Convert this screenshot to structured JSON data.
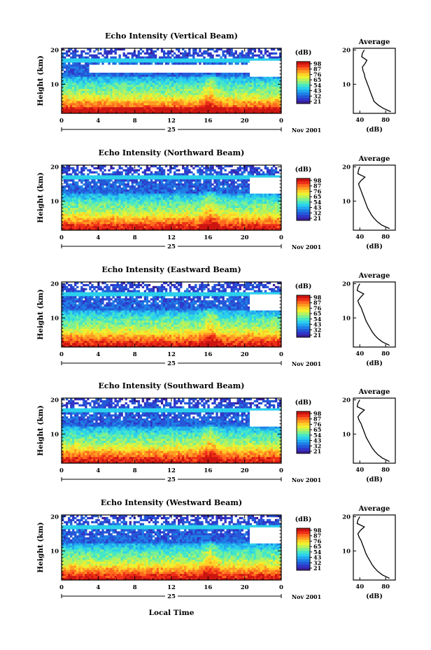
{
  "xlabel": "Local Time",
  "chart_data": [
    {
      "type": "heatmap",
      "title": "Echo Intensity (Vertical Beam)",
      "ylabel": "Height (km)",
      "x_ticks": [
        "0",
        "4",
        "8",
        "12",
        "16",
        "20",
        "0"
      ],
      "day_label": "25",
      "date_label": "Nov 2001",
      "y_ticks": [
        "20",
        "10"
      ],
      "colorbar_unit": "(dB)",
      "colorbar_ticks": [
        "98",
        "87",
        "76",
        "65",
        "54",
        "43",
        "32",
        "21"
      ],
      "ylim": [
        1.5,
        20.5
      ],
      "xlim": [
        0,
        24
      ],
      "average": {
        "title": "Average",
        "xlabel": "(dB)",
        "x_ticks": [
          "40",
          "80"
        ],
        "y_ticks": [
          "20",
          "10"
        ],
        "profile": [
          [
            20,
            47
          ],
          [
            19,
            44
          ],
          [
            18,
            43
          ],
          [
            17,
            51
          ],
          [
            16,
            48
          ],
          [
            15,
            44
          ],
          [
            14,
            45
          ],
          [
            13,
            47
          ],
          [
            12,
            48
          ],
          [
            11,
            50
          ],
          [
            10,
            52
          ],
          [
            9,
            54
          ],
          [
            8,
            56
          ],
          [
            7,
            58
          ],
          [
            6,
            60
          ],
          [
            5,
            62
          ],
          [
            4,
            68
          ],
          [
            3,
            76
          ],
          [
            2,
            88
          ]
        ]
      }
    },
    {
      "type": "heatmap",
      "title": "Echo Intensity (Northward Beam)",
      "ylabel": "Height (km)",
      "x_ticks": [
        "0",
        "4",
        "8",
        "12",
        "16",
        "20",
        "0"
      ],
      "day_label": "25",
      "date_label": "Nov 2001",
      "y_ticks": [
        "20",
        "10"
      ],
      "colorbar_unit": "(dB)",
      "colorbar_ticks": [
        "98",
        "87",
        "76",
        "65",
        "54",
        "43",
        "32",
        "21"
      ],
      "ylim": [
        1.5,
        20.5
      ],
      "xlim": [
        0,
        24
      ],
      "average": {
        "title": "Average",
        "xlabel": "(dB)",
        "x_ticks": [
          "40",
          "80"
        ],
        "y_ticks": [
          "20",
          "10"
        ],
        "profile": [
          [
            20,
            40
          ],
          [
            19,
            38
          ],
          [
            18,
            37
          ],
          [
            17,
            48
          ],
          [
            16,
            42
          ],
          [
            15,
            38
          ],
          [
            14,
            40
          ],
          [
            13,
            42
          ],
          [
            12,
            44
          ],
          [
            11,
            46
          ],
          [
            10,
            48
          ],
          [
            9,
            50
          ],
          [
            8,
            52
          ],
          [
            7,
            55
          ],
          [
            6,
            58
          ],
          [
            5,
            62
          ],
          [
            4,
            67
          ],
          [
            3,
            74
          ],
          [
            2,
            86
          ]
        ]
      }
    },
    {
      "type": "heatmap",
      "title": "Echo Intensity (Eastward Beam)",
      "ylabel": "Height (km)",
      "x_ticks": [
        "0",
        "4",
        "8",
        "12",
        "16",
        "20",
        "0"
      ],
      "day_label": "25",
      "date_label": "Nov 2001",
      "y_ticks": [
        "20",
        "10"
      ],
      "colorbar_unit": "(dB)",
      "colorbar_ticks": [
        "98",
        "87",
        "76",
        "65",
        "54",
        "43",
        "32",
        "21"
      ],
      "ylim": [
        1.5,
        20.5
      ],
      "xlim": [
        0,
        24
      ],
      "average": {
        "title": "Average",
        "xlabel": "(dB)",
        "x_ticks": [
          "40",
          "80"
        ],
        "y_ticks": [
          "20",
          "10"
        ],
        "profile": [
          [
            20,
            40
          ],
          [
            19,
            37
          ],
          [
            18,
            36
          ],
          [
            17,
            46
          ],
          [
            16,
            41
          ],
          [
            15,
            37
          ],
          [
            14,
            39
          ],
          [
            13,
            42
          ],
          [
            12,
            44
          ],
          [
            11,
            46
          ],
          [
            10,
            48
          ],
          [
            9,
            50
          ],
          [
            8,
            53
          ],
          [
            7,
            56
          ],
          [
            6,
            59
          ],
          [
            5,
            63
          ],
          [
            4,
            68
          ],
          [
            3,
            75
          ],
          [
            2,
            86
          ]
        ]
      }
    },
    {
      "type": "heatmap",
      "title": "Echo Intensity (Southward Beam)",
      "ylabel": "Height (km)",
      "x_ticks": [
        "0",
        "4",
        "8",
        "12",
        "16",
        "20",
        "0"
      ],
      "day_label": "25",
      "date_label": "Nov 2001",
      "y_ticks": [
        "20",
        "10"
      ],
      "colorbar_unit": "(dB)",
      "colorbar_ticks": [
        "98",
        "87",
        "76",
        "65",
        "54",
        "43",
        "32",
        "21"
      ],
      "ylim": [
        1.5,
        20.5
      ],
      "xlim": [
        0,
        24
      ],
      "average": {
        "title": "Average",
        "xlabel": "(dB)",
        "x_ticks": [
          "40",
          "80"
        ],
        "y_ticks": [
          "20",
          "10"
        ],
        "profile": [
          [
            20,
            40
          ],
          [
            19,
            37
          ],
          [
            18,
            36
          ],
          [
            17,
            47
          ],
          [
            16,
            41
          ],
          [
            15,
            37
          ],
          [
            14,
            39
          ],
          [
            13,
            42
          ],
          [
            12,
            44
          ],
          [
            11,
            46
          ],
          [
            10,
            48
          ],
          [
            9,
            50
          ],
          [
            8,
            53
          ],
          [
            7,
            56
          ],
          [
            6,
            59
          ],
          [
            5,
            63
          ],
          [
            4,
            68
          ],
          [
            3,
            75
          ],
          [
            2,
            86
          ]
        ]
      }
    },
    {
      "type": "heatmap",
      "title": "Echo Intensity (Westward Beam)",
      "ylabel": "Height (km)",
      "x_ticks": [
        "0",
        "4",
        "8",
        "12",
        "16",
        "20",
        "0"
      ],
      "day_label": "25",
      "date_label": "Nov 2001",
      "y_ticks": [
        "20",
        "10"
      ],
      "colorbar_unit": "(dB)",
      "colorbar_ticks": [
        "98",
        "87",
        "76",
        "65",
        "54",
        "43",
        "32",
        "21"
      ],
      "ylim": [
        1.5,
        20.5
      ],
      "xlim": [
        0,
        24
      ],
      "average": {
        "title": "Average",
        "xlabel": "(dB)",
        "x_ticks": [
          "40",
          "80"
        ],
        "y_ticks": [
          "20",
          "10"
        ],
        "profile": [
          [
            20,
            40
          ],
          [
            19,
            37
          ],
          [
            18,
            36
          ],
          [
            17,
            47
          ],
          [
            16,
            41
          ],
          [
            15,
            37
          ],
          [
            14,
            39
          ],
          [
            13,
            42
          ],
          [
            12,
            44
          ],
          [
            11,
            46
          ],
          [
            10,
            48
          ],
          [
            9,
            50
          ],
          [
            8,
            53
          ],
          [
            7,
            56
          ],
          [
            6,
            59
          ],
          [
            5,
            63
          ],
          [
            4,
            68
          ],
          [
            3,
            75
          ],
          [
            2,
            86
          ]
        ]
      }
    }
  ]
}
